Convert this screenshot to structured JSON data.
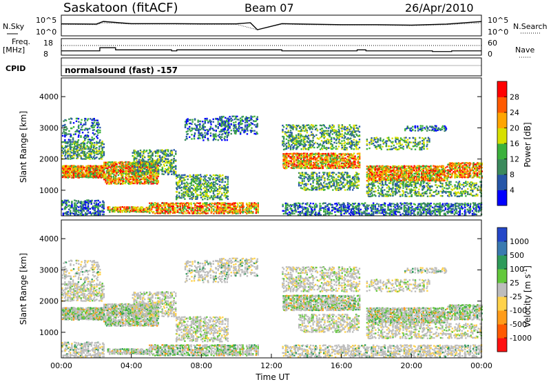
{
  "header": {
    "title": "Saskatoon (fitACF)",
    "beam": "Beam 07",
    "date": "26/Apr/2010"
  },
  "panels": {
    "nsky": {
      "left_label": "N.Sky",
      "right_label": "N.Search",
      "ticks_left": [
        "10^5",
        "10^0"
      ],
      "ticks_right": [
        "10^5",
        "10^0"
      ]
    },
    "freq": {
      "left_label_1": "Freq.",
      "left_label_2": "[MHz]",
      "right_label": "Nave",
      "ticks_left": [
        "18",
        "8"
      ],
      "ticks_right": [
        "60",
        "0"
      ]
    },
    "cpid": {
      "label": "CPID",
      "text": "normalsound (fast) -157"
    }
  },
  "chart_data": [
    {
      "type": "line",
      "title": "",
      "xlabel": "",
      "ylabel": "N.Sky",
      "scale": "log",
      "ylim": [
        1,
        100000
      ],
      "series": [
        {
          "name": "N.Sky",
          "x": [
            0,
            2,
            2.4,
            4,
            6,
            8,
            10,
            10.8,
            11.2,
            12.6,
            14,
            16,
            18,
            20,
            22,
            24
          ],
          "values": [
            800,
            700,
            3000,
            900,
            900,
            800,
            800,
            1500,
            30,
            900,
            700,
            500,
            500,
            400,
            700,
            3000
          ]
        },
        {
          "name": "N.Search",
          "x": [
            0,
            2,
            2.4,
            4,
            6,
            8,
            10,
            11.2,
            12.6,
            14,
            16,
            18,
            20,
            22,
            24
          ],
          "values": [
            600,
            500,
            1500,
            700,
            700,
            600,
            600,
            30,
            700,
            500,
            400,
            400,
            300,
            500,
            1500
          ]
        }
      ]
    },
    {
      "type": "line",
      "title": "",
      "xlabel": "",
      "ylabel": "Freq. [MHz]",
      "ylim": [
        8,
        18
      ],
      "y2label": "Nave",
      "y2lim": [
        0,
        60
      ],
      "series": [
        {
          "name": "Freq",
          "x": [
            0,
            2.2,
            2.2,
            3.1,
            3.1,
            6.3,
            6.3,
            6.6,
            6.6,
            11.2,
            12.6,
            12.6,
            16.9,
            16.9,
            17.4,
            17.4,
            21.2,
            21.2,
            22.3,
            22.3,
            24
          ],
          "values": [
            10.6,
            10.6,
            12.5,
            12.5,
            11.2,
            11.2,
            10.6,
            10.6,
            11.2,
            11.2,
            11.2,
            10.6,
            10.6,
            11.2,
            11.2,
            10.6,
            10.6,
            10.2,
            10.2,
            10.6,
            10.6
          ]
        },
        {
          "name": "Nave",
          "x": [
            0,
            24
          ],
          "values": [
            35,
            35
          ]
        }
      ]
    },
    {
      "type": "heatmap",
      "title": "",
      "xlabel": "",
      "ylabel": "Slant Range [km]",
      "xlim": [
        0,
        24
      ],
      "ylim": [
        180,
        4600
      ],
      "yticks": [
        1000,
        2000,
        3000,
        4000
      ],
      "colorbar": {
        "label": "Power [dB]",
        "ticks": [
          "4",
          "8",
          "12",
          "16",
          "20",
          "24",
          "28"
        ],
        "colors": [
          "#0000ff",
          "#2656a8",
          "#3b8a5c",
          "#3cb13c",
          "#d7e000",
          "#ffa500",
          "#ff5a00",
          "#ff0000"
        ]
      }
    },
    {
      "type": "heatmap",
      "title": "",
      "xlabel": "Time UT",
      "ylabel": "Slant Range [km]",
      "xlim": [
        0,
        24
      ],
      "ylim": [
        180,
        4600
      ],
      "yticks": [
        1000,
        2000,
        3000,
        4000
      ],
      "xticks": [
        "00:00",
        "04:00",
        "08:00",
        "12:00",
        "16:00",
        "20:00",
        "00:00"
      ],
      "colorbar": {
        "label": "Velocity [m s^-1]",
        "ticks": [
          "1000",
          "500",
          "100",
          "25",
          "-25",
          "-100",
          "-500",
          "-1000"
        ],
        "colors": [
          "#2447c8",
          "#3a7ab0",
          "#2e9b5a",
          "#63c83c",
          "#bdbdbd",
          "#ffd24a",
          "#ff9c1a",
          "#ff5a00",
          "#ff1010"
        ]
      }
    }
  ]
}
